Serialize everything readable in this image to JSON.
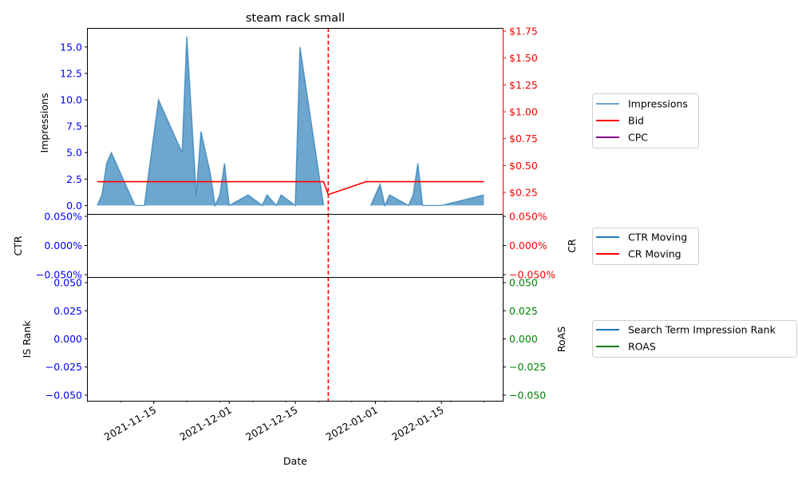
{
  "title": "steam rack small",
  "x_axis": {
    "label": "Date",
    "ticks": [
      {
        "label": "2021-11-15",
        "date": "2021-11-15"
      },
      {
        "label": "2021-12-01",
        "date": "2021-12-01"
      },
      {
        "label": "2021-12-15",
        "date": "2021-12-15"
      },
      {
        "label": "2022-01-01",
        "date": "2022-01-01"
      },
      {
        "label": "2022-01-15",
        "date": "2022-01-15"
      }
    ],
    "range": [
      "2021-11-01",
      "2022-01-28"
    ]
  },
  "vline_date": "2021-12-22",
  "colors": {
    "impressions": "#1f77b4",
    "bid": "#ff0000",
    "cpc": "#800080",
    "ctr": "#1f77b4",
    "cr": "#ff0000",
    "rank": "#1f77b4",
    "roas": "#008000",
    "left_tick": "#0000ff",
    "right_tick_top": "#ff0000",
    "right_tick_bottom": "#008000"
  },
  "panels": {
    "top": {
      "left_label": "Impressions",
      "left_ticks": [
        "0.0",
        "2.5",
        "5.0",
        "7.5",
        "10.0",
        "12.5",
        "15.0"
      ],
      "right_ticks": [
        "$0.25",
        "$0.50",
        "$0.75",
        "$1.00",
        "$1.25",
        "$1.50",
        "$1.75"
      ],
      "legend": [
        "Impressions",
        "Bid",
        "CPC"
      ]
    },
    "middle": {
      "left_label": "CTR",
      "right_label": "CR",
      "left_ticks": [
        "−0.050%",
        "0.000%",
        "0.050%"
      ],
      "right_ticks": [
        "−0.050%",
        "0.000%",
        "0.050%"
      ],
      "legend": [
        "CTR Moving",
        "CR Moving"
      ]
    },
    "bottom": {
      "left_label": "IS Rank",
      "right_label": "RoAS",
      "left_ticks": [
        "−0.050",
        "−0.025",
        "0.000",
        "0.025",
        "0.050"
      ],
      "right_ticks": [
        "−0.050",
        "−0.025",
        "0.000",
        "0.025",
        "0.050"
      ],
      "legend": [
        "Search Term Impression Rank",
        "ROAS"
      ]
    }
  },
  "chart_data": [
    {
      "type": "area",
      "title": "steam rack small",
      "xlabel": "Date",
      "ylabel": "Impressions",
      "ylim": [
        -0.8,
        16.8
      ],
      "grid": false,
      "legend_placement": "right",
      "series": [
        {
          "name": "Impressions",
          "points": [
            [
              "2021-11-03",
              0
            ],
            [
              "2021-11-04",
              1
            ],
            [
              "2021-11-05",
              4
            ],
            [
              "2021-11-06",
              5
            ],
            [
              "2021-11-08",
              3
            ],
            [
              "2021-11-10",
              1
            ],
            [
              "2021-11-11",
              0
            ],
            [
              "2021-11-13",
              0
            ],
            [
              "2021-11-16",
              10
            ],
            [
              "2021-11-21",
              5
            ],
            [
              "2021-11-22",
              16
            ],
            [
              "2021-11-24",
              1
            ],
            [
              "2021-11-25",
              7
            ],
            [
              "2021-11-27",
              3
            ],
            [
              "2021-11-28",
              0
            ],
            [
              "2021-11-29",
              1
            ],
            [
              "2021-11-30",
              4
            ],
            [
              "2021-12-01",
              0
            ],
            [
              "2021-12-05",
              1
            ],
            [
              "2021-12-08",
              0
            ],
            [
              "2021-12-09",
              1
            ],
            [
              "2021-12-11",
              0
            ],
            [
              "2021-12-12",
              1
            ],
            [
              "2021-12-15",
              0
            ],
            [
              "2021-12-16",
              15
            ],
            [
              "2021-12-21",
              0
            ]
          ]
        },
        {
          "name": "Impressions",
          "points": [
            [
              "2021-12-31",
              0
            ],
            [
              "2022-01-02",
              2
            ],
            [
              "2022-01-03",
              0
            ],
            [
              "2022-01-04",
              1
            ],
            [
              "2022-01-08",
              0
            ],
            [
              "2022-01-09",
              1
            ],
            [
              "2022-01-10",
              4
            ],
            [
              "2022-01-11",
              0
            ],
            [
              "2022-01-15",
              0
            ],
            [
              "2022-01-24",
              1
            ]
          ]
        }
      ]
    },
    {
      "type": "line",
      "ylabel": "Bid",
      "ylim": [
        0.05,
        1.78
      ],
      "series": [
        {
          "name": "Bid",
          "points": [
            [
              "2021-11-03",
              0.35
            ],
            [
              "2021-12-21",
              0.35
            ],
            [
              "2021-12-22",
              0.23
            ],
            [
              "2021-12-30",
              0.35
            ],
            [
              "2022-01-24",
              0.35
            ]
          ]
        },
        {
          "name": "CPC",
          "points": []
        }
      ]
    },
    {
      "type": "line",
      "ylabel": "CTR",
      "ylim": [
        -0.05,
        0.05
      ],
      "series": [
        {
          "name": "CTR Moving",
          "points": []
        },
        {
          "name": "CR Moving",
          "points": []
        }
      ]
    },
    {
      "type": "line",
      "ylabel": "IS Rank",
      "ylim": [
        -0.055,
        0.055
      ],
      "series": [
        {
          "name": "Search Term Impression Rank",
          "points": []
        },
        {
          "name": "ROAS",
          "points": []
        }
      ]
    }
  ]
}
